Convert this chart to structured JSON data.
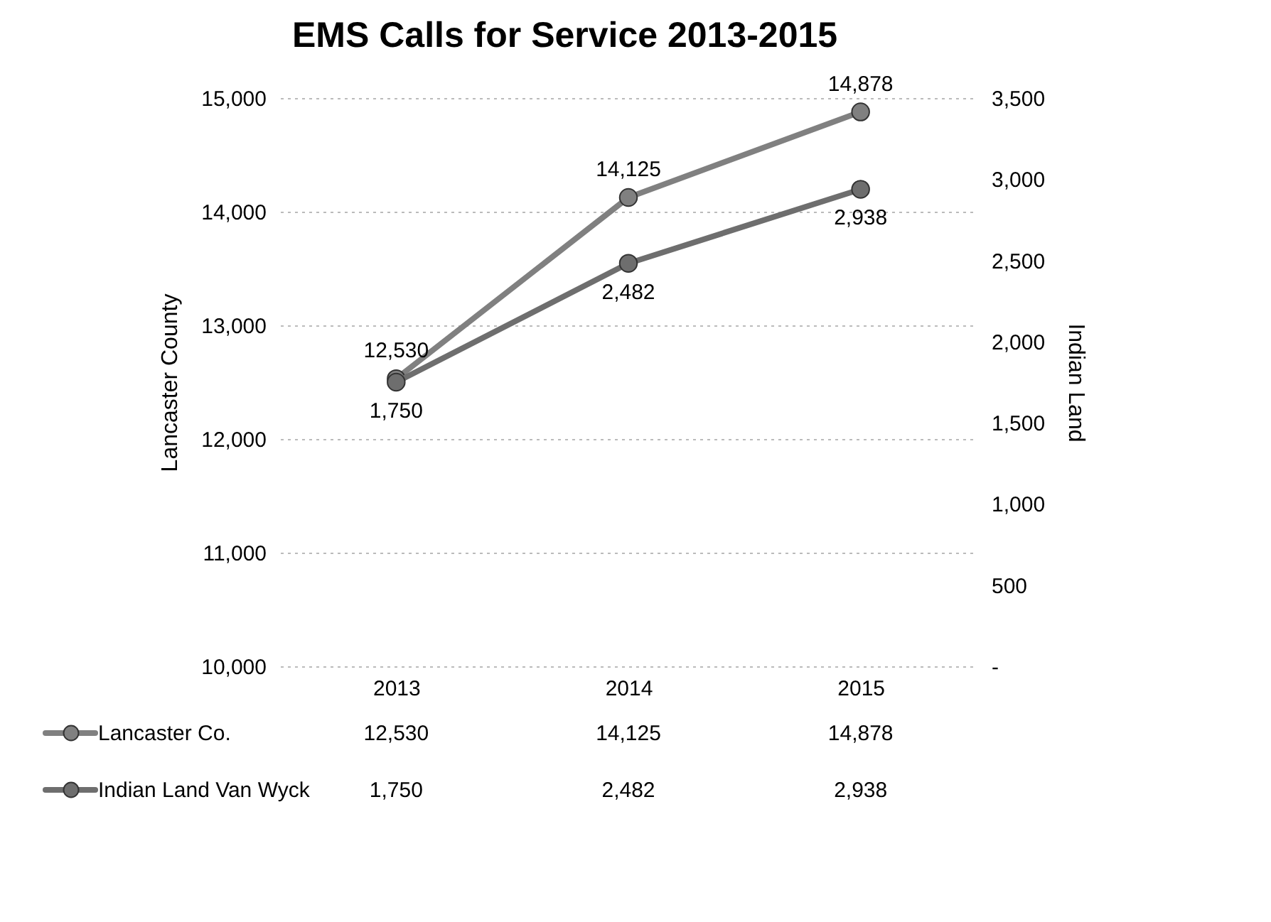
{
  "chart_data": {
    "type": "line",
    "title": "EMS Calls for Service 2013-2015",
    "ylabel": "Lancaster County",
    "y2label": "Indian Land",
    "categories": [
      "2013",
      "2014",
      "2015"
    ],
    "series": [
      {
        "name": "Lancaster Co.",
        "color": "#808080",
        "values": [
          12530,
          14125,
          14878
        ],
        "value_labels": [
          "12,530",
          "14,125",
          "14,878"
        ]
      },
      {
        "name": "Indian Land Van Wyck",
        "color": "#6e6e6e",
        "values": [
          1750,
          2482,
          2938
        ],
        "value_labels": [
          "1,750",
          "2,482",
          "2,938"
        ],
        "axis": "y2"
      }
    ],
    "ylim": [
      10000,
      15000
    ],
    "yticks": [
      {
        "value": 10000,
        "label": "10,000"
      },
      {
        "value": 11000,
        "label": "11,000"
      },
      {
        "value": 12000,
        "label": "12,000"
      },
      {
        "value": 13000,
        "label": "13,000"
      },
      {
        "value": 14000,
        "label": "14,000"
      },
      {
        "value": 15000,
        "label": "15,000"
      }
    ],
    "y2lim": [
      0,
      3500
    ],
    "y2ticks": [
      {
        "value": 0,
        "label": "-"
      },
      500,
      {
        "value": 1000,
        "label": "1,000"
      },
      {
        "value": 1500,
        "label": "1,500"
      },
      {
        "value": 2000,
        "label": "2,000"
      },
      {
        "value": 2500,
        "label": "2,500"
      },
      {
        "value": 3000,
        "label": "3,000"
      },
      {
        "value": 3500,
        "label": "3,500"
      }
    ],
    "grid": "y",
    "legend": "bottom",
    "marker": "circle",
    "line_style": "solid"
  }
}
